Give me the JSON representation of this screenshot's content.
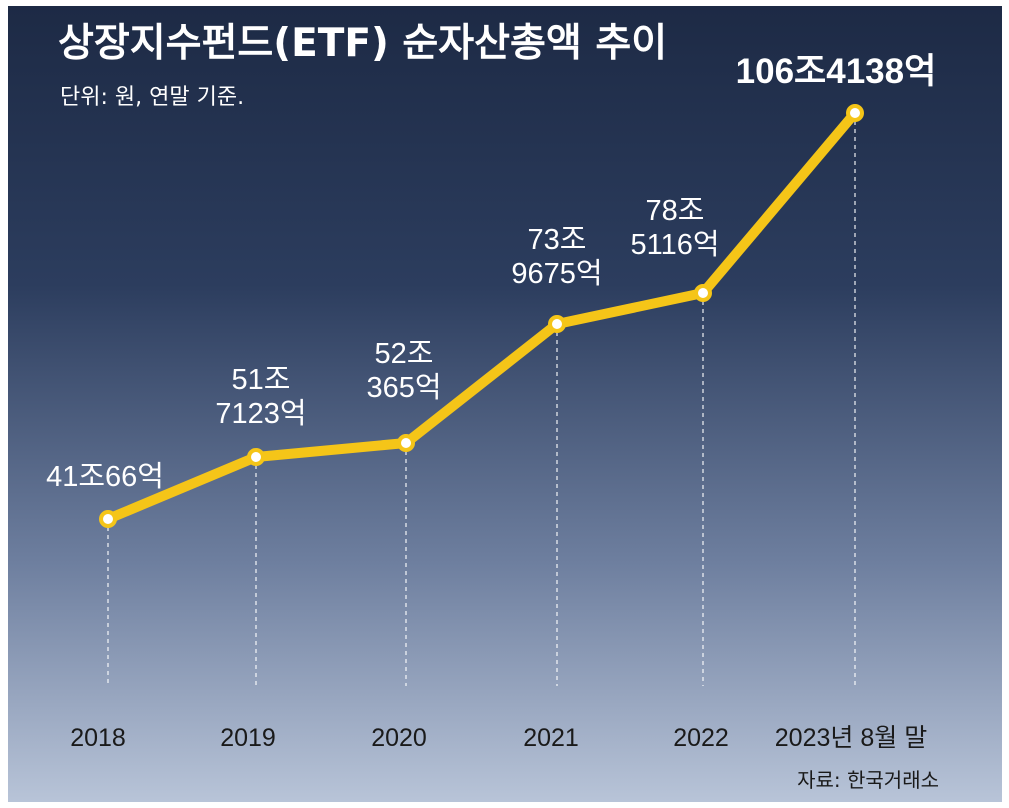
{
  "chart_data": {
    "type": "line",
    "title": "상장지수펀드(ETF) 순자산총액 추이",
    "subtitle": "단위: 원, 연말 기준.",
    "source": "자료: 한국거래소",
    "categories": [
      "2018",
      "2019",
      "2020",
      "2021",
      "2022",
      "2023년 8월 말"
    ],
    "values": [
      41.0066,
      51.7123,
      52.0365,
      73.9675,
      78.5116,
      106.4138
    ],
    "value_unit": "조원",
    "data_labels": [
      [
        "41조66억"
      ],
      [
        "51조",
        "7123억"
      ],
      [
        "52조",
        "365억"
      ],
      [
        "73조",
        "9675억"
      ],
      [
        "78조",
        "5116억"
      ],
      [
        "106조4138억"
      ]
    ],
    "ylim": [
      0,
      115
    ],
    "line_color": "#f5c518",
    "marker_fill": "#ffffff",
    "guide_color": "#ffffff"
  }
}
